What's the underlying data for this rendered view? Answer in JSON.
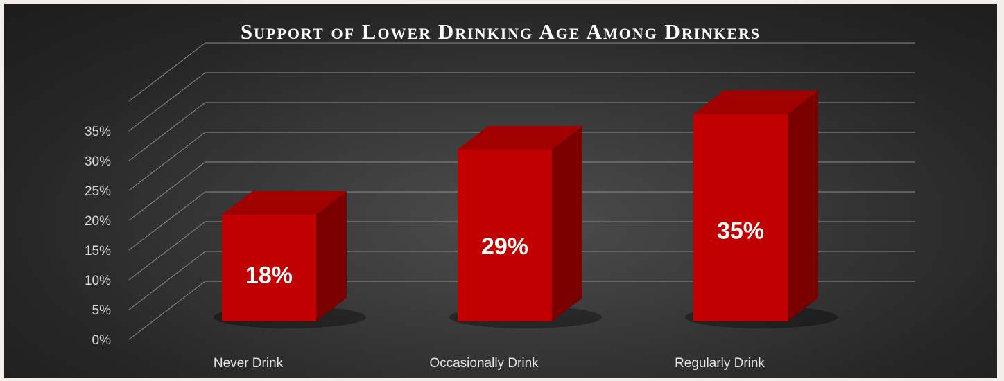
{
  "chart_data": {
    "type": "bar",
    "title": "Support of Lower Drinking Age Among Drinkers",
    "categories": [
      "Never Drink",
      "Occasionally Drink",
      "Regularly Drink"
    ],
    "values": [
      18,
      29,
      35
    ],
    "data_labels": [
      "18%",
      "29%",
      "35%"
    ],
    "xlabel": "",
    "ylabel": "",
    "ylim": [
      0,
      35
    ],
    "yticks": [
      0,
      5,
      10,
      15,
      20,
      25,
      30,
      35
    ],
    "ytick_labels": [
      "0%",
      "5%",
      "10%",
      "15%",
      "20%",
      "25%",
      "30%",
      "35%"
    ],
    "grid": true,
    "legend": "none",
    "style": "3d-column",
    "colors": {
      "bar_front": "#c00000",
      "bar_side": "#7a0000",
      "bar_top": "#a00000",
      "gridline": "#8c8c8c",
      "background": "#333333"
    }
  }
}
